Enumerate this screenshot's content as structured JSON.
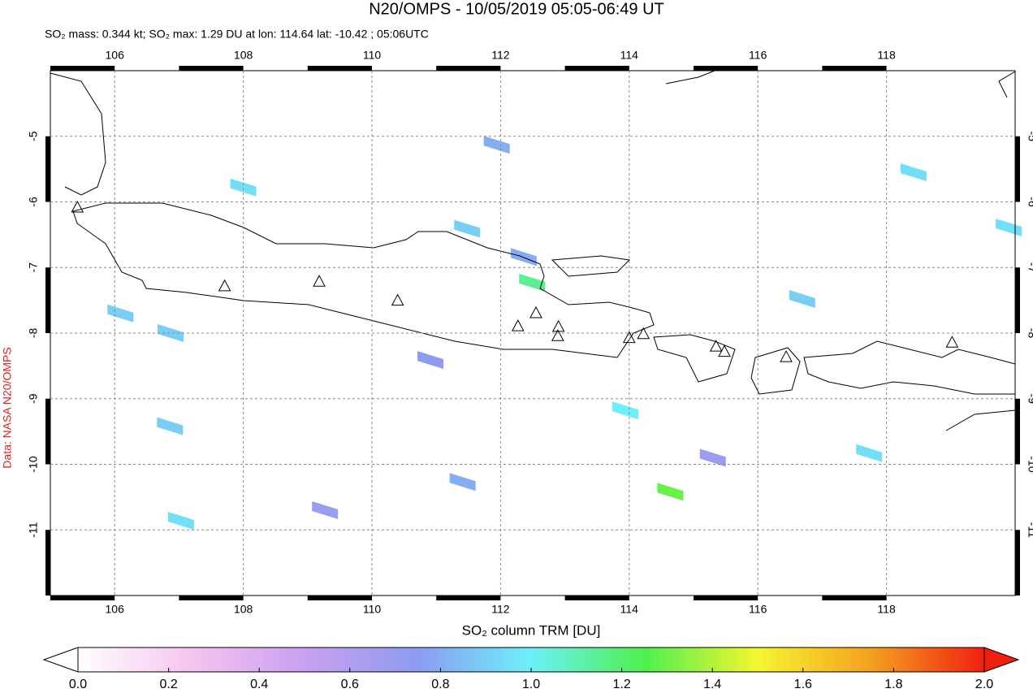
{
  "chart_data": {
    "type": "map",
    "title": "N20/OMPS - 10/05/2019 05:05-06:49 UT",
    "subtitle": "SO₂ mass: 0.344 kt; SO₂ max: 1.29 DU at lon: 114.64 lat: -10.42 ; 05:06UTC",
    "credit": "Data: NASA N20/OMPS",
    "xlim": [
      105,
      120
    ],
    "ylim": [
      -12,
      -4
    ],
    "xticks": [
      106,
      108,
      110,
      112,
      114,
      116,
      118
    ],
    "yticks": [
      -5,
      -6,
      -7,
      -8,
      -9,
      -10,
      -11
    ],
    "grid": true,
    "pixels": [
      {
        "lon": 111.48,
        "lat": -6.41,
        "value": 0.9
      },
      {
        "lon": 112.49,
        "lat": -7.23,
        "value": 1.15
      },
      {
        "lon": 114.64,
        "lat": -10.42,
        "value": 1.29
      },
      {
        "lon": 113.94,
        "lat": -9.18,
        "value": 1.0
      },
      {
        "lon": 111.94,
        "lat": -5.13,
        "value": 0.8
      },
      {
        "lon": 108.0,
        "lat": -5.78,
        "value": 0.95
      },
      {
        "lon": 106.09,
        "lat": -7.7,
        "value": 0.9
      },
      {
        "lon": 106.87,
        "lat": -8.0,
        "value": 0.9
      },
      {
        "lon": 106.86,
        "lat": -9.42,
        "value": 0.9
      },
      {
        "lon": 107.03,
        "lat": -10.86,
        "value": 0.95
      },
      {
        "lon": 117.73,
        "lat": -9.83,
        "value": 0.95
      },
      {
        "lon": 116.69,
        "lat": -7.48,
        "value": 0.9
      },
      {
        "lon": 119.9,
        "lat": -6.39,
        "value": 0.95
      },
      {
        "lon": 118.42,
        "lat": -5.55,
        "value": 0.95
      },
      {
        "lon": 110.91,
        "lat": -8.41,
        "value": 0.75
      },
      {
        "lon": 111.41,
        "lat": -10.27,
        "value": 0.8
      },
      {
        "lon": 109.27,
        "lat": -10.7,
        "value": 0.7
      },
      {
        "lon": 112.36,
        "lat": -6.84,
        "value": 0.8
      },
      {
        "lon": 115.3,
        "lat": -9.9,
        "value": 0.7
      }
    ],
    "volcanoes": [
      [
        105.42,
        -6.08
      ],
      [
        107.71,
        -7.28
      ],
      [
        109.18,
        -7.21
      ],
      [
        110.4,
        -7.5
      ],
      [
        112.27,
        -7.89
      ],
      [
        112.55,
        -7.69
      ],
      [
        112.9,
        -7.9
      ],
      [
        112.89,
        -8.04
      ],
      [
        114.0,
        -8.07
      ],
      [
        114.22,
        -8.01
      ],
      [
        115.35,
        -8.2
      ],
      [
        115.48,
        -8.28
      ],
      [
        116.44,
        -8.36
      ],
      [
        119.02,
        -8.14
      ]
    ],
    "colorbar": {
      "label": "SO₂ column TRM [DU]",
      "lim": [
        0,
        2
      ],
      "ticks": [
        {
          "value": 0,
          "label": "0.0"
        },
        {
          "value": 0.2,
          "label": "0.2"
        },
        {
          "value": 0.4,
          "label": "0.4"
        },
        {
          "value": 0.6,
          "label": "0.6"
        },
        {
          "value": 0.8,
          "label": "0.8"
        },
        {
          "value": 1,
          "label": "1.0"
        },
        {
          "value": 1.2,
          "label": "1.2"
        },
        {
          "value": 1.4,
          "label": "1.4"
        },
        {
          "value": 1.6,
          "label": "1.6"
        },
        {
          "value": 1.8,
          "label": "1.8"
        },
        {
          "value": 2,
          "label": "2.0"
        }
      ],
      "colors": [
        "#ffffff",
        "#f5c4ee",
        "#c9a0f0",
        "#8c9cf0",
        "#6cf0f8",
        "#4ef04e",
        "#f5f530",
        "#f5a020",
        "#f02010"
      ]
    }
  }
}
